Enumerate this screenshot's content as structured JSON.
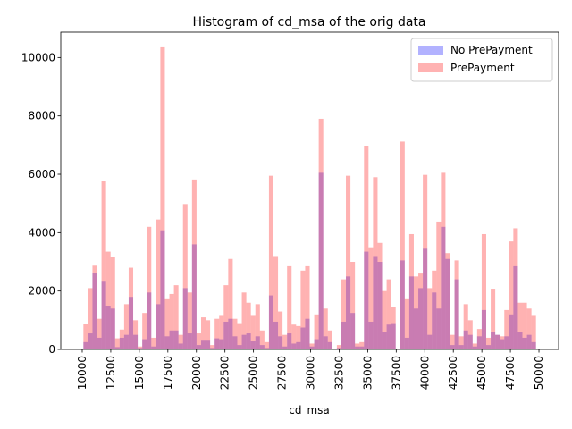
{
  "chart_data": {
    "type": "histogram",
    "title": "Histogram of cd_msa of the orig data",
    "x_label": "cd_msa",
    "bins": [
      10104,
      10500,
      10897,
      11293,
      11689,
      12086,
      12482,
      12878,
      13275,
      13671,
      14068,
      14464,
      14860,
      15257,
      15653,
      16049,
      16446,
      16842,
      17238,
      17635,
      18031,
      18427,
      18824,
      19220,
      19616,
      20013,
      20409,
      20805,
      21202,
      21598,
      21995,
      22391,
      22787,
      23184,
      23580,
      23976,
      24373,
      24769,
      25165,
      25562,
      25958,
      26354,
      26751,
      27147,
      27543,
      27940,
      28336,
      28732,
      29129,
      29525,
      29922,
      30318,
      30714,
      31111,
      31507,
      31903,
      32300,
      32696,
      33092,
      33489,
      33885,
      34281,
      34678,
      35074,
      35470,
      35867,
      36263,
      36659,
      37056,
      37452,
      37849,
      38245,
      38641,
      39038,
      39434,
      39830,
      40227,
      40623,
      41019,
      41416,
      41812,
      42208,
      42605,
      43001,
      43397,
      43794,
      44190,
      44586,
      44983,
      45379,
      45776,
      46172,
      46568,
      46965,
      47361,
      47757,
      48154,
      48550,
      48946,
      49343,
      49739
    ],
    "series": [
      {
        "name": "No PrePayment",
        "color": "#0000ff",
        "opacity": 0.3,
        "values": [
          250,
          550,
          2620,
          400,
          2350,
          1500,
          1400,
          80,
          400,
          500,
          1800,
          500,
          50,
          350,
          1950,
          100,
          1550,
          4080,
          450,
          650,
          650,
          200,
          2100,
          550,
          3600,
          150,
          330,
          330,
          50,
          380,
          350,
          950,
          1050,
          450,
          150,
          500,
          550,
          300,
          450,
          150,
          50,
          1850,
          950,
          450,
          100,
          550,
          200,
          250,
          750,
          1050,
          100,
          350,
          6050,
          450,
          250,
          0,
          50,
          950,
          2500,
          1250,
          100,
          100,
          3350,
          950,
          3200,
          3000,
          600,
          850,
          900,
          0,
          3050,
          400,
          2500,
          1400,
          2100,
          3450,
          500,
          1950,
          1400,
          4200,
          3100,
          150,
          2400,
          150,
          650,
          500,
          100,
          450,
          1350,
          150,
          600,
          500,
          350,
          450,
          1200,
          2850,
          600,
          400,
          500,
          250
        ]
      },
      {
        "name": "PrePayment",
        "color": "#ff0000",
        "opacity": 0.3,
        "values": [
          870,
          2100,
          2870,
          1050,
          5780,
          3350,
          3170,
          380,
          680,
          1550,
          2800,
          1000,
          100,
          1250,
          4200,
          400,
          4450,
          10350,
          1750,
          1900,
          2200,
          500,
          4980,
          1950,
          5820,
          550,
          1100,
          1000,
          150,
          1050,
          1150,
          2200,
          3100,
          1050,
          900,
          1950,
          1600,
          1150,
          1550,
          650,
          250,
          5950,
          3200,
          1300,
          500,
          2850,
          850,
          800,
          2700,
          2850,
          200,
          1200,
          7900,
          1400,
          650,
          0,
          150,
          2400,
          5950,
          3000,
          200,
          250,
          6980,
          3500,
          5900,
          3650,
          2000,
          2400,
          1450,
          0,
          7120,
          1750,
          3950,
          2500,
          2600,
          5980,
          2100,
          2700,
          4380,
          6050,
          3300,
          500,
          3050,
          450,
          1550,
          1000,
          200,
          700,
          3950,
          400,
          2080,
          500,
          450,
          1350,
          3700,
          4150,
          1600,
          1600,
          1400,
          1150
        ]
      }
    ],
    "xlim": [
      8122,
      51720
    ],
    "ylim": [
      0,
      10868
    ],
    "xticks": [
      10000,
      12500,
      15000,
      17500,
      20000,
      22500,
      25000,
      27500,
      30000,
      32500,
      35000,
      37500,
      40000,
      42500,
      45000,
      47500,
      50000
    ],
    "yticks": [
      0,
      2000,
      4000,
      6000,
      8000,
      10000
    ],
    "legend": "upper right"
  }
}
